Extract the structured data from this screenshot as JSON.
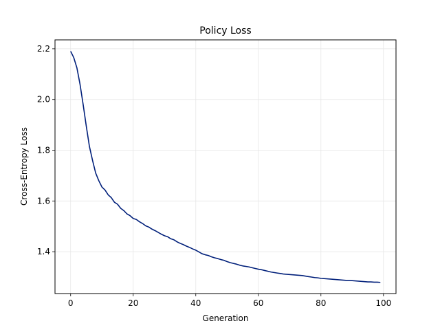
{
  "chart_data": {
    "type": "line",
    "title": "Policy Loss",
    "xlabel": "Generation",
    "ylabel": "Cross-Entropy Loss",
    "xlim": [
      -5,
      104
    ],
    "ylim": [
      1.235,
      2.235
    ],
    "xticks": [
      0,
      20,
      40,
      60,
      80,
      100
    ],
    "yticks": [
      1.4,
      1.6,
      1.8,
      2.0,
      2.2
    ],
    "xtick_labels": [
      "0",
      "20",
      "40",
      "60",
      "80",
      "100"
    ],
    "ytick_labels": [
      "1.4",
      "1.6",
      "1.8",
      "2.0",
      "2.2"
    ],
    "grid": true,
    "legend": "none",
    "series": [
      {
        "color": "#001f7a",
        "x": [
          0,
          1,
          2,
          3,
          4,
          5,
          6,
          7,
          8,
          9,
          10,
          11,
          12,
          13,
          14,
          15,
          16,
          17,
          18,
          19,
          20,
          21,
          22,
          23,
          24,
          25,
          26,
          27,
          28,
          29,
          30,
          31,
          32,
          33,
          34,
          35,
          36,
          37,
          38,
          39,
          40,
          41,
          42,
          43,
          44,
          45,
          46,
          47,
          48,
          49,
          50,
          51,
          52,
          53,
          54,
          55,
          56,
          57,
          58,
          59,
          60,
          61,
          62,
          63,
          64,
          65,
          66,
          67,
          68,
          69,
          70,
          71,
          72,
          73,
          74,
          75,
          76,
          77,
          78,
          79,
          80,
          81,
          82,
          83,
          84,
          85,
          86,
          87,
          88,
          89,
          90,
          91,
          92,
          93,
          94,
          95,
          96,
          97,
          98,
          99
        ],
        "y": [
          2.19,
          2.165,
          2.125,
          2.06,
          1.98,
          1.895,
          1.815,
          1.76,
          1.71,
          1.68,
          1.655,
          1.643,
          1.624,
          1.613,
          1.595,
          1.587,
          1.571,
          1.562,
          1.549,
          1.542,
          1.531,
          1.527,
          1.518,
          1.511,
          1.502,
          1.497,
          1.489,
          1.483,
          1.476,
          1.469,
          1.463,
          1.459,
          1.451,
          1.447,
          1.439,
          1.433,
          1.428,
          1.422,
          1.417,
          1.411,
          1.406,
          1.399,
          1.392,
          1.388,
          1.385,
          1.38,
          1.376,
          1.373,
          1.369,
          1.366,
          1.361,
          1.357,
          1.354,
          1.351,
          1.347,
          1.344,
          1.342,
          1.34,
          1.337,
          1.334,
          1.331,
          1.329,
          1.326,
          1.323,
          1.32,
          1.318,
          1.316,
          1.314,
          1.312,
          1.311,
          1.31,
          1.309,
          1.308,
          1.307,
          1.306,
          1.304,
          1.302,
          1.3,
          1.298,
          1.297,
          1.295,
          1.294,
          1.293,
          1.292,
          1.291,
          1.29,
          1.289,
          1.288,
          1.287,
          1.287,
          1.286,
          1.285,
          1.284,
          1.283,
          1.282,
          1.281,
          1.281,
          1.28,
          1.28,
          1.279
        ]
      }
    ]
  }
}
